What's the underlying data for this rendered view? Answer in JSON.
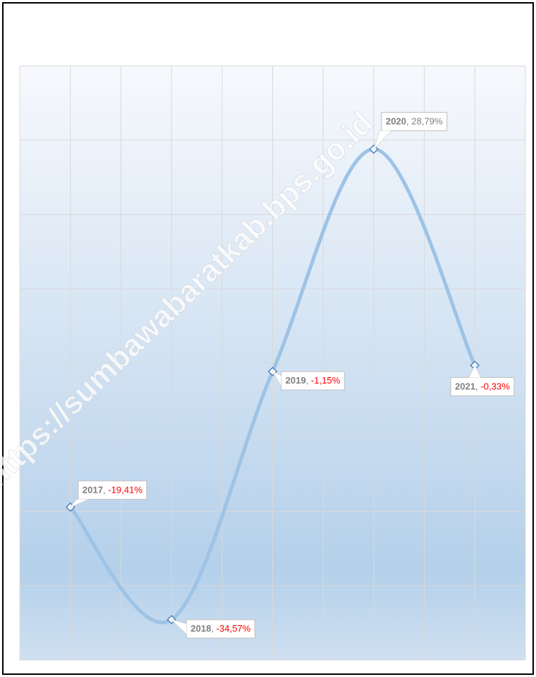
{
  "chart_data": {
    "type": "line",
    "watermark": "https://sumbawabaratkab.bps.go.id",
    "categories": [
      "2017",
      "2018",
      "2019",
      "2020",
      "2021"
    ],
    "values": [
      -19.41,
      -34.57,
      -1.15,
      28.79,
      -0.33
    ],
    "value_labels": [
      "-19,41%",
      "-34,57%",
      "-1,15%",
      "28,79%",
      "-0,33%"
    ],
    "label_separator": ", ",
    "color": "#9dc3e6",
    "marker_color": "#4f81bd",
    "label_color": "#7f7f7f",
    "negative_label_color": "#ff0000",
    "ylim": [
      -40,
      40
    ],
    "yticks": [
      -40,
      -30,
      -20,
      -10,
      0,
      10,
      20,
      30,
      40
    ],
    "grid": true,
    "smooth": true
  }
}
